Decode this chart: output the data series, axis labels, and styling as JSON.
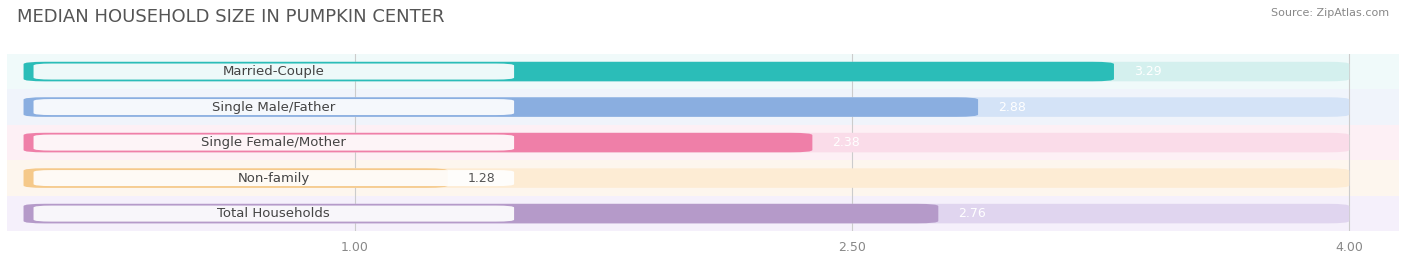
{
  "title": "MEDIAN HOUSEHOLD SIZE IN PUMPKIN CENTER",
  "source": "Source: ZipAtlas.com",
  "categories": [
    "Married-Couple",
    "Single Male/Father",
    "Single Female/Mother",
    "Non-family",
    "Total Households"
  ],
  "values": [
    3.29,
    2.88,
    2.38,
    1.28,
    2.76
  ],
  "bar_colors": [
    "#2bbdb8",
    "#8aaee0",
    "#ef7fa8",
    "#f5c98a",
    "#b59ac9"
  ],
  "bar_bg_colors": [
    "#d4f0ee",
    "#d4e3f7",
    "#fadce9",
    "#fdecd4",
    "#e0d5ef"
  ],
  "row_bg_colors": [
    "#f0fafa",
    "#f0f4fb",
    "#fdf0f5",
    "#fdf6ee",
    "#f5f0fb"
  ],
  "xlim": [
    -0.05,
    4.15
  ],
  "xmin": 0.0,
  "xmax": 4.0,
  "xticks": [
    1.0,
    2.5,
    4.0
  ],
  "title_fontsize": 13,
  "label_fontsize": 9.5,
  "value_fontsize": 9,
  "value_colors_dark": [
    false,
    false,
    false,
    true,
    false
  ]
}
